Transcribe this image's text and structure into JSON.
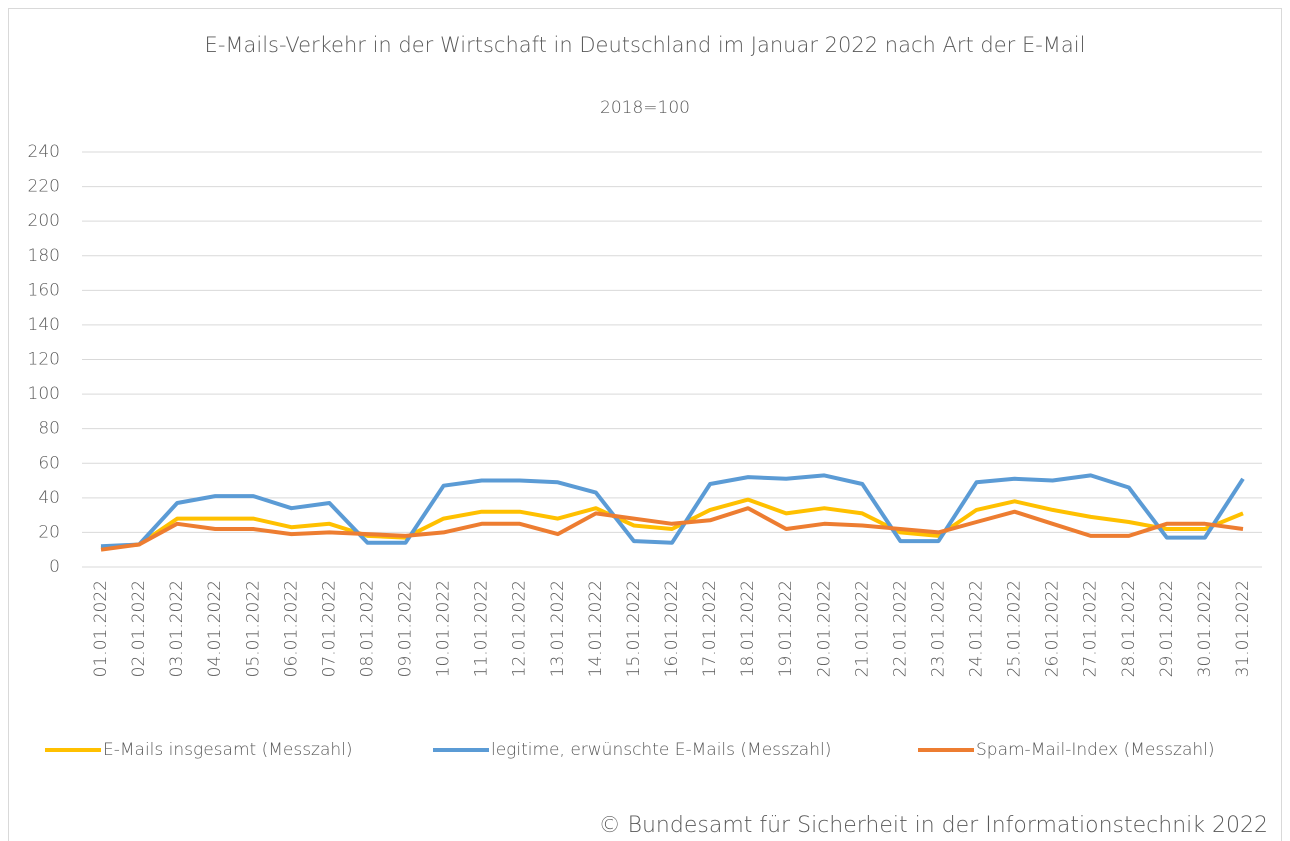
{
  "chart_data": {
    "type": "line",
    "title": "E-Mails-Verkehr in der Wirtschaft in Deutschland im Januar 2022  nach Art der E-Mail",
    "subtitle": "2018=100",
    "source": "© Bundesamt für Sicherheit in der Informationstechnik 2022",
    "categories": [
      "01.01.2022",
      "02.01.2022",
      "03.01.2022",
      "04.01.2022",
      "05.01.2022",
      "06.01.2022",
      "07.01.2022",
      "08.01.2022",
      "09.01.2022",
      "10.01.2022",
      "11.01.2022",
      "12.01.2022",
      "13.01.2022",
      "14.01.2022",
      "15.01.2022",
      "16.01.2022",
      "17.01.2022",
      "18.01.2022",
      "19.01.2022",
      "20.01.2022",
      "21.01.2022",
      "22.01.2022",
      "23.01.2022",
      "24.01.2022",
      "25.01.2022",
      "26.01.2022",
      "27.01.2022",
      "28.01.2022",
      "29.01.2022",
      "30.01.2022",
      "31.01.2022"
    ],
    "series": [
      {
        "name": "E-Mails insgesamt (Messzahl)",
        "color": "#ffc000",
        "values": [
          11,
          13,
          28,
          28,
          28,
          23,
          25,
          18,
          17,
          28,
          32,
          32,
          28,
          34,
          24,
          22,
          33,
          39,
          31,
          34,
          31,
          20,
          18,
          33,
          38,
          33,
          29,
          26,
          22,
          22,
          31
        ]
      },
      {
        "name": "legitime, erwünschte E-Mails (Messzahl)",
        "color": "#5b9bd5",
        "values": [
          12,
          13,
          37,
          41,
          41,
          34,
          37,
          14,
          14,
          47,
          50,
          50,
          49,
          43,
          15,
          14,
          48,
          52,
          51,
          53,
          48,
          15,
          15,
          49,
          51,
          50,
          53,
          46,
          17,
          17,
          51
        ]
      },
      {
        "name": "Spam-Mail-Index (Messzahl)",
        "color": "#ed7d31",
        "values": [
          10,
          13,
          25,
          22,
          22,
          19,
          20,
          19,
          18,
          20,
          25,
          25,
          19,
          31,
          28,
          25,
          27,
          34,
          22,
          25,
          24,
          22,
          20,
          26,
          32,
          25,
          18,
          18,
          25,
          25,
          22
        ]
      }
    ],
    "ylim": [
      0,
      240
    ],
    "yticks": [
      0,
      20,
      40,
      60,
      80,
      100,
      120,
      140,
      160,
      180,
      200,
      220,
      240
    ],
    "grid": true,
    "legend": "bottom"
  }
}
